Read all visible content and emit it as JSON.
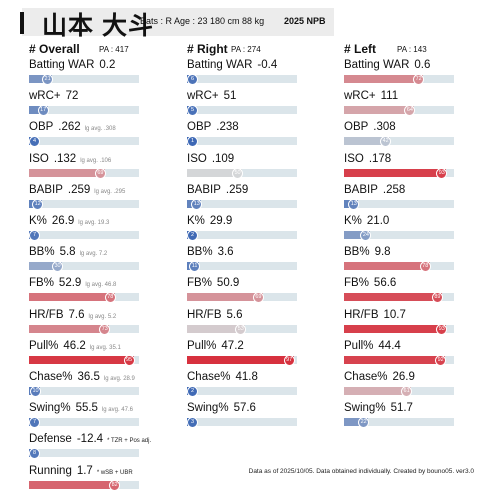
{
  "header": {
    "name": "山本 大斗",
    "info": "Bats : R  Age : 23  180 cm 88 kg",
    "season": "2025 NPB"
  },
  "footer": "Data as of 2025/10/05. Data obtained individually. Created by bouno05.  ver3.0",
  "columns": [
    {
      "title": "# Overall",
      "pa": "PA : 417",
      "rows": [
        {
          "name": "Batting WAR",
          "value": "0.2",
          "pct": 21,
          "lg": "",
          "note": ""
        },
        {
          "name": "wRC+",
          "value": "72",
          "pct": 17,
          "lg": "",
          "note": ""
        },
        {
          "name": "OBP",
          "value": ".262",
          "pct": 4,
          "lg": "lg avg. .308",
          "note": ""
        },
        {
          "name": "ISO",
          "value": ".132",
          "pct": 69,
          "lg": "lg avg. .106",
          "note": ""
        },
        {
          "name": "BABIP",
          "value": ".259",
          "pct": 12,
          "lg": "lg avg. .295",
          "note": ""
        },
        {
          "name": "K%",
          "value": "26.9",
          "pct": 7,
          "lg": "lg avg. 19.3",
          "note": ""
        },
        {
          "name": "BB%",
          "value": "5.8",
          "pct": 30,
          "lg": "lg avg. 7.2",
          "note": ""
        },
        {
          "name": "FB%",
          "value": "52.9",
          "pct": 78,
          "lg": "lg avg. 46.8",
          "note": ""
        },
        {
          "name": "HR/FB",
          "value": "7.6",
          "pct": 73,
          "lg": "lg avg. 5.2",
          "note": ""
        },
        {
          "name": "Pull%",
          "value": "46.2",
          "pct": 95,
          "lg": "lg avg. 35.1",
          "note": ""
        },
        {
          "name": "Chase%",
          "value": "36.5",
          "pct": 10,
          "lg": "lg avg. 28.9",
          "note": ""
        },
        {
          "name": "Swing%",
          "value": "55.5",
          "pct": 7,
          "lg": "lg avg. 47.6",
          "note": ""
        },
        {
          "name": "Defense",
          "value": "-12.4",
          "pct": 8,
          "lg": "",
          "note": "* TZR + Pos adj."
        },
        {
          "name": "Running",
          "value": "1.7",
          "pct": 82,
          "lg": "",
          "note": "* wSB + UBR"
        }
      ]
    },
    {
      "title": "# Right",
      "pa": "PA : 274",
      "rows": [
        {
          "name": "Batting WAR",
          "value": "-0.4",
          "pct": 6,
          "lg": "",
          "note": ""
        },
        {
          "name": "wRC+",
          "value": "51",
          "pct": 5,
          "lg": "",
          "note": ""
        },
        {
          "name": "OBP",
          "value": ".238",
          "pct": 1,
          "lg": "",
          "note": ""
        },
        {
          "name": "ISO",
          "value": ".109",
          "pct": 50,
          "lg": "",
          "note": ""
        },
        {
          "name": "BABIP",
          "value": ".259",
          "pct": 13,
          "lg": "",
          "note": ""
        },
        {
          "name": "K%",
          "value": "29.9",
          "pct": 2,
          "lg": "",
          "note": ""
        },
        {
          "name": "BB%",
          "value": "3.6",
          "pct": 11,
          "lg": "",
          "note": ""
        },
        {
          "name": "FB%",
          "value": "50.9",
          "pct": 69,
          "lg": "",
          "note": ""
        },
        {
          "name": "HR/FB",
          "value": "5.6",
          "pct": 53,
          "lg": "",
          "note": ""
        },
        {
          "name": "Pull%",
          "value": "47.2",
          "pct": 97,
          "lg": "",
          "note": ""
        },
        {
          "name": "Chase%",
          "value": "41.8",
          "pct": 2,
          "lg": "",
          "note": ""
        },
        {
          "name": "Swing%",
          "value": "57.6",
          "pct": 3,
          "lg": "",
          "note": ""
        }
      ]
    },
    {
      "title": "# Left",
      "pa": "PA : 143",
      "rows": [
        {
          "name": "Batting WAR",
          "value": "0.6",
          "pct": 72,
          "lg": "",
          "note": ""
        },
        {
          "name": "wRC+",
          "value": "111",
          "pct": 64,
          "lg": "",
          "note": ""
        },
        {
          "name": "OBP",
          "value": ".308",
          "pct": 42,
          "lg": "",
          "note": ""
        },
        {
          "name": "ISO",
          "value": ".178",
          "pct": 93,
          "lg": "",
          "note": ""
        },
        {
          "name": "BABIP",
          "value": ".258",
          "pct": 13,
          "lg": "",
          "note": ""
        },
        {
          "name": "K%",
          "value": "21.0",
          "pct": 24,
          "lg": "",
          "note": ""
        },
        {
          "name": "BB%",
          "value": "9.8",
          "pct": 78,
          "lg": "",
          "note": ""
        },
        {
          "name": "FB%",
          "value": "56.6",
          "pct": 89,
          "lg": "",
          "note": ""
        },
        {
          "name": "HR/FB",
          "value": "10.7",
          "pct": 93,
          "lg": "",
          "note": ""
        },
        {
          "name": "Pull%",
          "value": "44.4",
          "pct": 92,
          "lg": "",
          "note": ""
        },
        {
          "name": "Chase%",
          "value": "26.9",
          "pct": 61,
          "lg": "",
          "note": ""
        },
        {
          "name": "Swing%",
          "value": "51.7",
          "pct": 22,
          "lg": "",
          "note": ""
        }
      ]
    }
  ]
}
